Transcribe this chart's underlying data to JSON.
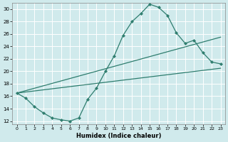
{
  "title": "",
  "xlabel": "Humidex (Indice chaleur)",
  "bg_color": "#d0eaec",
  "grid_color": "#ffffff",
  "line_color": "#2e7d6e",
  "xlim": [
    -0.5,
    23.5
  ],
  "ylim": [
    11.5,
    31.0
  ],
  "xticks": [
    0,
    1,
    2,
    3,
    4,
    5,
    6,
    7,
    8,
    9,
    10,
    11,
    12,
    13,
    14,
    15,
    16,
    17,
    18,
    19,
    20,
    21,
    22,
    23
  ],
  "yticks": [
    12,
    14,
    16,
    18,
    20,
    22,
    24,
    26,
    28,
    30
  ],
  "curve": {
    "x": [
      0,
      1,
      2,
      3,
      4,
      5,
      6,
      7,
      8,
      9,
      10,
      11,
      12,
      13,
      14,
      15,
      16,
      17,
      18,
      19,
      20,
      21,
      22,
      23
    ],
    "y": [
      16.5,
      15.7,
      14.3,
      13.3,
      12.5,
      12.2,
      12.0,
      12.5,
      15.5,
      17.3,
      20.0,
      22.5,
      25.8,
      28.0,
      29.3,
      30.8,
      30.3,
      29.0,
      26.2,
      24.5,
      25.0,
      23.0,
      21.5,
      21.2
    ]
  },
  "line1": {
    "x": [
      0,
      23
    ],
    "y": [
      16.5,
      20.5
    ]
  },
  "line2": {
    "x": [
      0,
      23
    ],
    "y": [
      16.5,
      25.5
    ]
  }
}
